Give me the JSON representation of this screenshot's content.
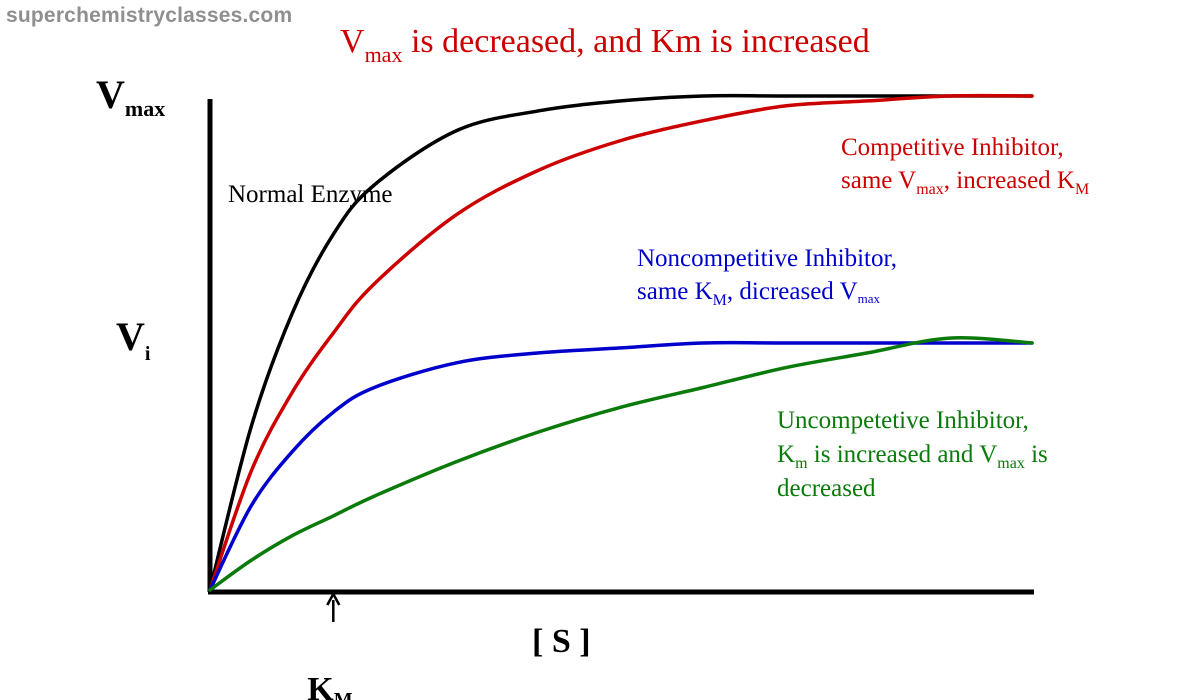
{
  "watermark": "superchemistryclasses.com",
  "chart_data": {
    "type": "line",
    "title": {
      "main": "V",
      "sub": "max",
      "rest": " is decreased, and Km is increased"
    },
    "xlabel": "[ S ]",
    "ylabel": {
      "main": "V",
      "sub": "i"
    },
    "y_top_label": {
      "main": "V",
      "sub": "max"
    },
    "km_label": {
      "main": "K",
      "sub": "M"
    },
    "xlim": [
      0,
      10
    ],
    "ylim": [
      0,
      1
    ],
    "km_marker_x": 1.5,
    "grid": false,
    "series": [
      {
        "id": "normal",
        "color": "#000000",
        "label": "Normal Enzyme",
        "x": [
          0,
          0.5,
          1,
          1.5,
          2,
          3,
          4,
          5,
          6,
          7,
          8,
          9,
          10
        ],
        "y": [
          0,
          0.33,
          0.56,
          0.72,
          0.82,
          0.93,
          0.97,
          0.99,
          1.0,
          1.0,
          1.0,
          1.0,
          1.0
        ]
      },
      {
        "id": "competitive",
        "color": "#cc0000",
        "x": [
          0,
          0.5,
          1,
          1.5,
          2,
          3,
          4,
          5,
          6,
          7,
          8,
          9,
          10
        ],
        "y": [
          0,
          0.24,
          0.4,
          0.52,
          0.62,
          0.76,
          0.85,
          0.91,
          0.95,
          0.98,
          0.99,
          1.0,
          1.0
        ]
      },
      {
        "id": "noncompetitive",
        "color": "#0000cc",
        "x": [
          0,
          0.5,
          1,
          1.5,
          2,
          3,
          4,
          5,
          6,
          7,
          8,
          9,
          10
        ],
        "y": [
          0,
          0.17,
          0.28,
          0.36,
          0.41,
          0.46,
          0.48,
          0.49,
          0.5,
          0.5,
          0.5,
          0.5,
          0.5
        ]
      },
      {
        "id": "uncompetitive",
        "color": "#0a7a0a",
        "x": [
          0,
          0.5,
          1,
          1.5,
          2,
          3,
          4,
          5,
          6,
          7,
          8,
          9,
          10
        ],
        "y": [
          0,
          0.06,
          0.11,
          0.15,
          0.19,
          0.26,
          0.32,
          0.37,
          0.41,
          0.45,
          0.48,
          0.51,
          0.5
        ]
      }
    ],
    "annotations": {
      "normal": {
        "text": "Normal Enzyme",
        "color": "#000000"
      },
      "competitive": {
        "line1": "Competitive Inhibitor,",
        "l2a": "same V",
        "l2b": "max",
        "l2c": ", increased K",
        "l2d": "M",
        "color": "#cc0000"
      },
      "noncompetitive": {
        "line1": "Noncompetitive Inhibitor,",
        "l2a": "same K",
        "l2b": "M",
        "l2c": ", dicreased V",
        "l2d": "max",
        "color": "#0000cc"
      },
      "uncompetitive": {
        "line1": "Uncompetetive Inhibitor,",
        "l2a": "K",
        "l2b": "m",
        "l2c": " is increased and V",
        "l2d": "max",
        "l2e": " is",
        "line3": "decreased",
        "color": "#0a7a0a"
      }
    }
  }
}
